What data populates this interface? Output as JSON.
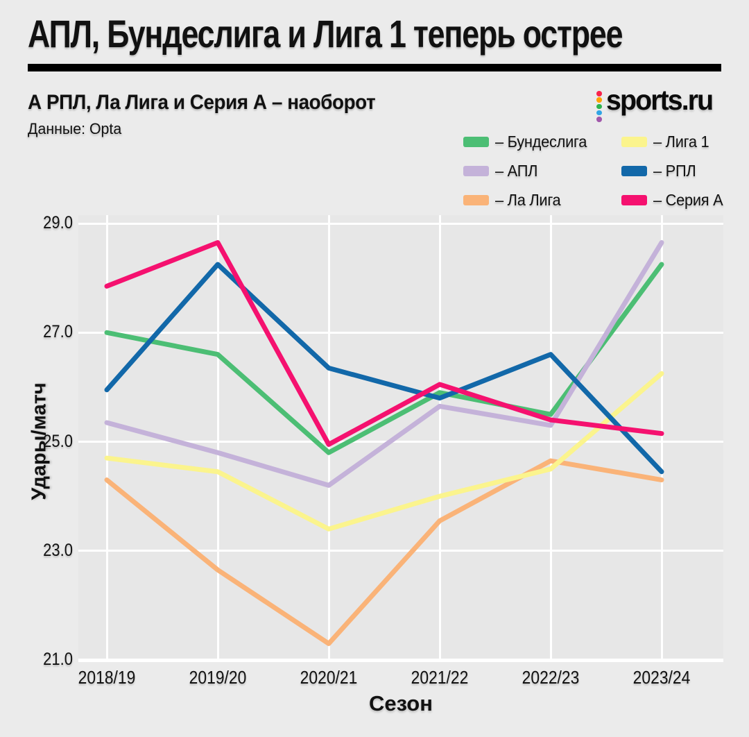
{
  "header": {
    "title": "АПЛ, Бундеслига и Лига 1 теперь острее",
    "subtitle": "А РПЛ, Ла Лига и Серия А – наоборот",
    "source": "Данные: Opta",
    "logo_text": "sports.ru",
    "logo_dot_colors": [
      "#f9244c",
      "#ffa200",
      "#2eb44e",
      "#31a5e5",
      "#a158ab"
    ]
  },
  "legend_prefix": "– ",
  "chart_data": {
    "type": "line",
    "title": "АПЛ, Бундеслига и Лига 1 теперь острее",
    "xlabel": "Сезон",
    "ylabel": "Удары/матч",
    "x": [
      "2018/19",
      "2019/20",
      "2020/21",
      "2021/22",
      "2022/23",
      "2023/24"
    ],
    "yticks": [
      29.0,
      27.0,
      25.0,
      23.0,
      21.0
    ],
    "ylim": [
      21.0,
      29.0
    ],
    "grid": true,
    "legend_position": "top-right",
    "series": [
      {
        "name": "Бундеслига",
        "color": "#4cbe74",
        "values": [
          27.0,
          26.6,
          24.8,
          25.9,
          25.5,
          28.25
        ]
      },
      {
        "name": "АПЛ",
        "color": "#c4b2d9",
        "values": [
          25.35,
          24.8,
          24.2,
          25.65,
          25.3,
          28.65
        ]
      },
      {
        "name": "Ла Лига",
        "color": "#fab378",
        "values": [
          24.3,
          22.65,
          21.3,
          23.55,
          24.65,
          24.3
        ]
      },
      {
        "name": "Лига 1",
        "color": "#fbf48d",
        "values": [
          24.7,
          24.45,
          23.4,
          24.0,
          24.5,
          26.25
        ]
      },
      {
        "name": "РПЛ",
        "color": "#1268a9",
        "values": [
          25.95,
          28.25,
          26.35,
          25.8,
          26.6,
          24.45
        ]
      },
      {
        "name": "Серия А",
        "color": "#f5116f",
        "values": [
          27.85,
          28.65,
          24.95,
          26.05,
          25.4,
          25.15
        ]
      }
    ]
  }
}
